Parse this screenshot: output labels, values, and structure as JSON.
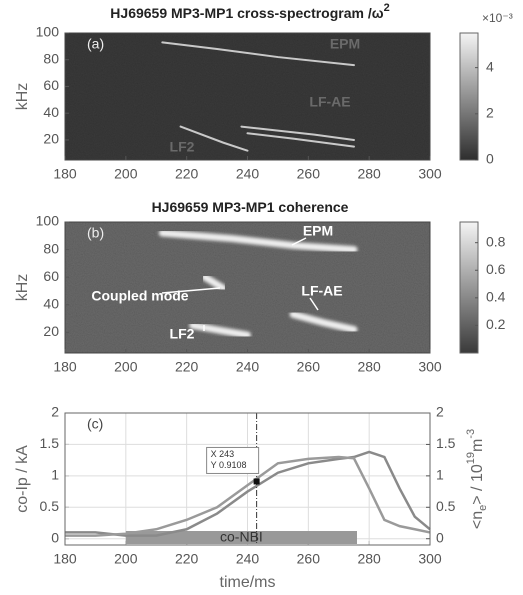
{
  "chart_data": [
    {
      "type": "heatmap",
      "title": "HJ69659  MP3-MP1 cross-spectrogram /ω",
      "title_exponent": "2",
      "panel_label": "(a)",
      "ylabel": "kHz",
      "xlim": [
        180,
        300
      ],
      "xticks": [
        180,
        200,
        220,
        240,
        260,
        280,
        300
      ],
      "ylim": [
        5,
        100
      ],
      "yticks": [
        20,
        40,
        60,
        80,
        100
      ],
      "clim": [
        0,
        0.0055
      ],
      "cticks": [
        0,
        {
          "value": 0.002,
          "label": "2"
        },
        {
          "value": 0.004,
          "label": "4"
        }
      ],
      "colorbar_scale": "×10⁻³",
      "colormap": [
        "#2e2e2e",
        "#f4f4f4"
      ],
      "background": "#3a3a3a",
      "ridge_color": "#c9c9c9",
      "ridges": [
        {
          "x": [
            212,
            230,
            250,
            275
          ],
          "y": [
            93,
            88,
            82,
            76
          ]
        },
        {
          "x": [
            238,
            250,
            262,
            275
          ],
          "y": [
            30,
            27,
            24,
            20
          ]
        },
        {
          "x": [
            240,
            255,
            275
          ],
          "y": [
            25,
            21,
            15
          ]
        },
        {
          "x": [
            218,
            232,
            240
          ],
          "y": [
            30,
            18,
            12
          ]
        }
      ],
      "annotations": [
        "EPM",
        "LF-AE",
        "LF2"
      ]
    },
    {
      "type": "heatmap",
      "title": "HJ69659  MP3-MP1 coherence",
      "panel_label": "(b)",
      "ylabel": "kHz",
      "xlim": [
        180,
        300
      ],
      "xticks": [
        180,
        200,
        220,
        240,
        260,
        280,
        300
      ],
      "ylim": [
        5,
        100
      ],
      "yticks": [
        20,
        40,
        60,
        80,
        100
      ],
      "clim": [
        0,
        0.95
      ],
      "cticks": [
        0.2,
        0.4,
        0.6,
        0.8
      ],
      "colormap": [
        "#3a3a3a",
        "#f4f4f4"
      ],
      "background": "#6a6a6a",
      "ridge_color": "#eeeeee",
      "ridges": [
        {
          "x": [
            212,
            235,
            255,
            275
          ],
          "y": [
            92,
            88,
            83,
            80
          ]
        },
        {
          "x": [
            255,
            265,
            275
          ],
          "y": [
            33,
            27,
            22
          ]
        },
        {
          "x": [
            222,
            232,
            240
          ],
          "y": [
            25,
            21,
            18
          ]
        },
        {
          "x": [
            226,
            232
          ],
          "y": [
            60,
            52
          ]
        }
      ],
      "annotations": [
        "EPM",
        "Coupled mode",
        "LF-AE",
        "LF2"
      ]
    },
    {
      "type": "line",
      "panel_label": "(c)",
      "xlabel": "time/ms",
      "ylabel": "co-Ip / kA",
      "y2label_parts": [
        "<n",
        "e",
        "> / 10",
        "19",
        "m",
        "-3"
      ],
      "xlim": [
        180,
        300
      ],
      "xticks": [
        180,
        200,
        220,
        240,
        260,
        280,
        300
      ],
      "ylim": [
        -0.1,
        2
      ],
      "yticks": [
        0,
        0.5,
        1,
        1.5,
        2
      ],
      "y2lim": [
        -0.1,
        2
      ],
      "y2ticks": [
        0,
        0.5,
        1,
        1.5,
        2
      ],
      "grid": true,
      "x": [
        180,
        190,
        200,
        210,
        220,
        230,
        240,
        250,
        260,
        270,
        275,
        280,
        285,
        290,
        295,
        300
      ],
      "series": [
        {
          "color": "#8a8a8a",
          "values": [
            0.1,
            0.1,
            0.05,
            0.05,
            0.15,
            0.4,
            0.75,
            1.05,
            1.2,
            1.27,
            1.3,
            1.38,
            1.3,
            0.8,
            0.35,
            0.15
          ]
        },
        {
          "color": "#9a9a9a",
          "axis": "y2",
          "values": [
            0.05,
            0.05,
            0.08,
            0.15,
            0.3,
            0.5,
            0.85,
            1.2,
            1.27,
            1.3,
            1.28,
            0.8,
            0.3,
            0.2,
            0.15,
            0.1
          ]
        }
      ],
      "nbi": {
        "label": "co-NBI",
        "start": 200,
        "end": 276
      },
      "cursor": {
        "x": 243,
        "y": 0.9108,
        "x_label": "X 243",
        "y_label": "Y 0.9108"
      }
    }
  ]
}
